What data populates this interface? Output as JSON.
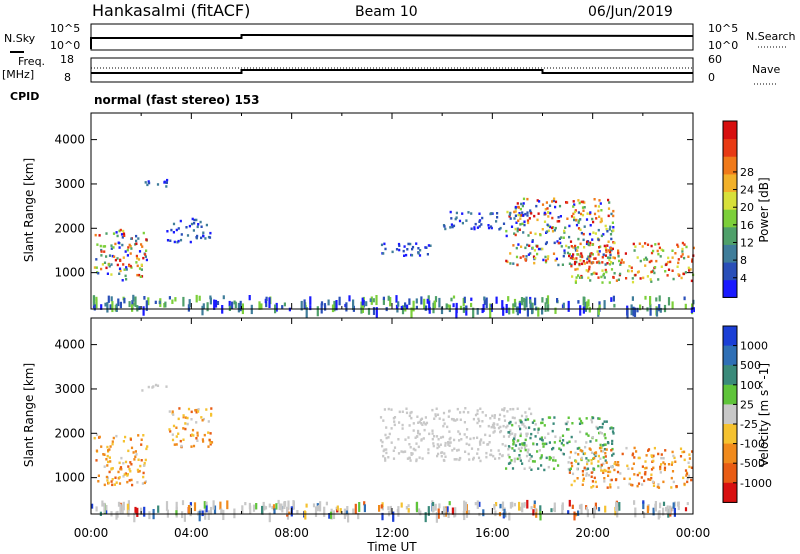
{
  "header": {
    "station": "Hankasalmi (fitACF)",
    "beam": "Beam 10",
    "date": "06/Jun/2019"
  },
  "top_panels": {
    "nsky_label": "N.Sky",
    "nsearch_label": "N.Search",
    "nsky_ticks": [
      "10^5",
      "10^0"
    ],
    "nsearch_ticks": [
      "10^5",
      "10^0"
    ],
    "freq_label": "Freq.",
    "freq_unit": "[MHz]",
    "freq_ticks": [
      "18",
      "8"
    ],
    "nave_label": "Nave",
    "nave_ticks": [
      "60",
      "0"
    ],
    "cpid_label": "CPID",
    "cpid_text": "normal (fast stereo) 153"
  },
  "time_axis": {
    "title": "Time UT",
    "ticks": [
      "00:00",
      "04:00",
      "08:00",
      "12:00",
      "16:00",
      "20:00",
      "00:00"
    ]
  },
  "chart_data": [
    {
      "type": "heatmap",
      "panel": "power",
      "ylabel": "Slant Range [km]",
      "y_ticks": [
        1000,
        2000,
        3000,
        4000
      ],
      "ylim": [
        180,
        4600
      ],
      "xlim_hours": [
        0,
        24
      ],
      "colorbar": {
        "label": "Power [dB]",
        "ticks": [
          "4",
          "8",
          "12",
          "16",
          "20",
          "24",
          "28"
        ],
        "colors": [
          "#1a1aff",
          "#2a4fb8",
          "#3f7d9a",
          "#4fa06a",
          "#7ccf3a",
          "#d8e03a",
          "#f2b12a",
          "#f07a1a",
          "#e83a14",
          "#d70f0f"
        ]
      },
      "regions": [
        {
          "t": [
            0.1,
            2.2
          ],
          "r": [
            850,
            2000
          ],
          "level": "mixed"
        },
        {
          "t": [
            2.0,
            3.0
          ],
          "r": [
            2950,
            3120
          ],
          "level": "low"
        },
        {
          "t": [
            3.0,
            4.8
          ],
          "r": [
            1700,
            2250
          ],
          "level": "low"
        },
        {
          "t": [
            11.5,
            13.5
          ],
          "r": [
            1400,
            1700
          ],
          "level": "low"
        },
        {
          "t": [
            14.0,
            17.5
          ],
          "r": [
            2000,
            2400
          ],
          "level": "low"
        },
        {
          "t": [
            16.5,
            20.8
          ],
          "r": [
            1200,
            2700
          ],
          "level": "mixed"
        },
        {
          "t": [
            19.0,
            24.0
          ],
          "r": [
            800,
            1700
          ],
          "level": "high"
        },
        {
          "t": [
            0.0,
            24.0
          ],
          "r": [
            200,
            500
          ],
          "level": "noise"
        }
      ]
    },
    {
      "type": "heatmap",
      "panel": "velocity",
      "ylabel": "Slant Range [km]",
      "y_ticks": [
        1000,
        2000,
        3000,
        4000
      ],
      "ylim": [
        180,
        4600
      ],
      "xlim_hours": [
        0,
        24
      ],
      "colorbar": {
        "label": "Velocity [m s^-1]",
        "ticks": [
          "1000",
          "500",
          "100",
          "25",
          "-25",
          "-100",
          "-500",
          "-1000"
        ],
        "colors": [
          "#1b3fd6",
          "#2f6fb5",
          "#3a8a7a",
          "#5fc43a",
          "#c8c8c8",
          "#f5c230",
          "#f08a1c",
          "#e85c14",
          "#d81010"
        ]
      },
      "regions": [
        {
          "t": [
            0.1,
            2.2
          ],
          "r": [
            850,
            2000
          ],
          "level": "negative"
        },
        {
          "t": [
            2.0,
            3.0
          ],
          "r": [
            2950,
            3120
          ],
          "level": "ground"
        },
        {
          "t": [
            3.0,
            4.8
          ],
          "r": [
            1700,
            2600
          ],
          "level": "negative"
        },
        {
          "t": [
            11.5,
            17.5
          ],
          "r": [
            1400,
            2600
          ],
          "level": "ground"
        },
        {
          "t": [
            16.5,
            20.8
          ],
          "r": [
            1200,
            2400
          ],
          "level": "positive"
        },
        {
          "t": [
            19.0,
            24.0
          ],
          "r": [
            800,
            1700
          ],
          "level": "negative"
        },
        {
          "t": [
            0.0,
            24.0
          ],
          "r": [
            200,
            500
          ],
          "level": "noise"
        }
      ]
    }
  ]
}
